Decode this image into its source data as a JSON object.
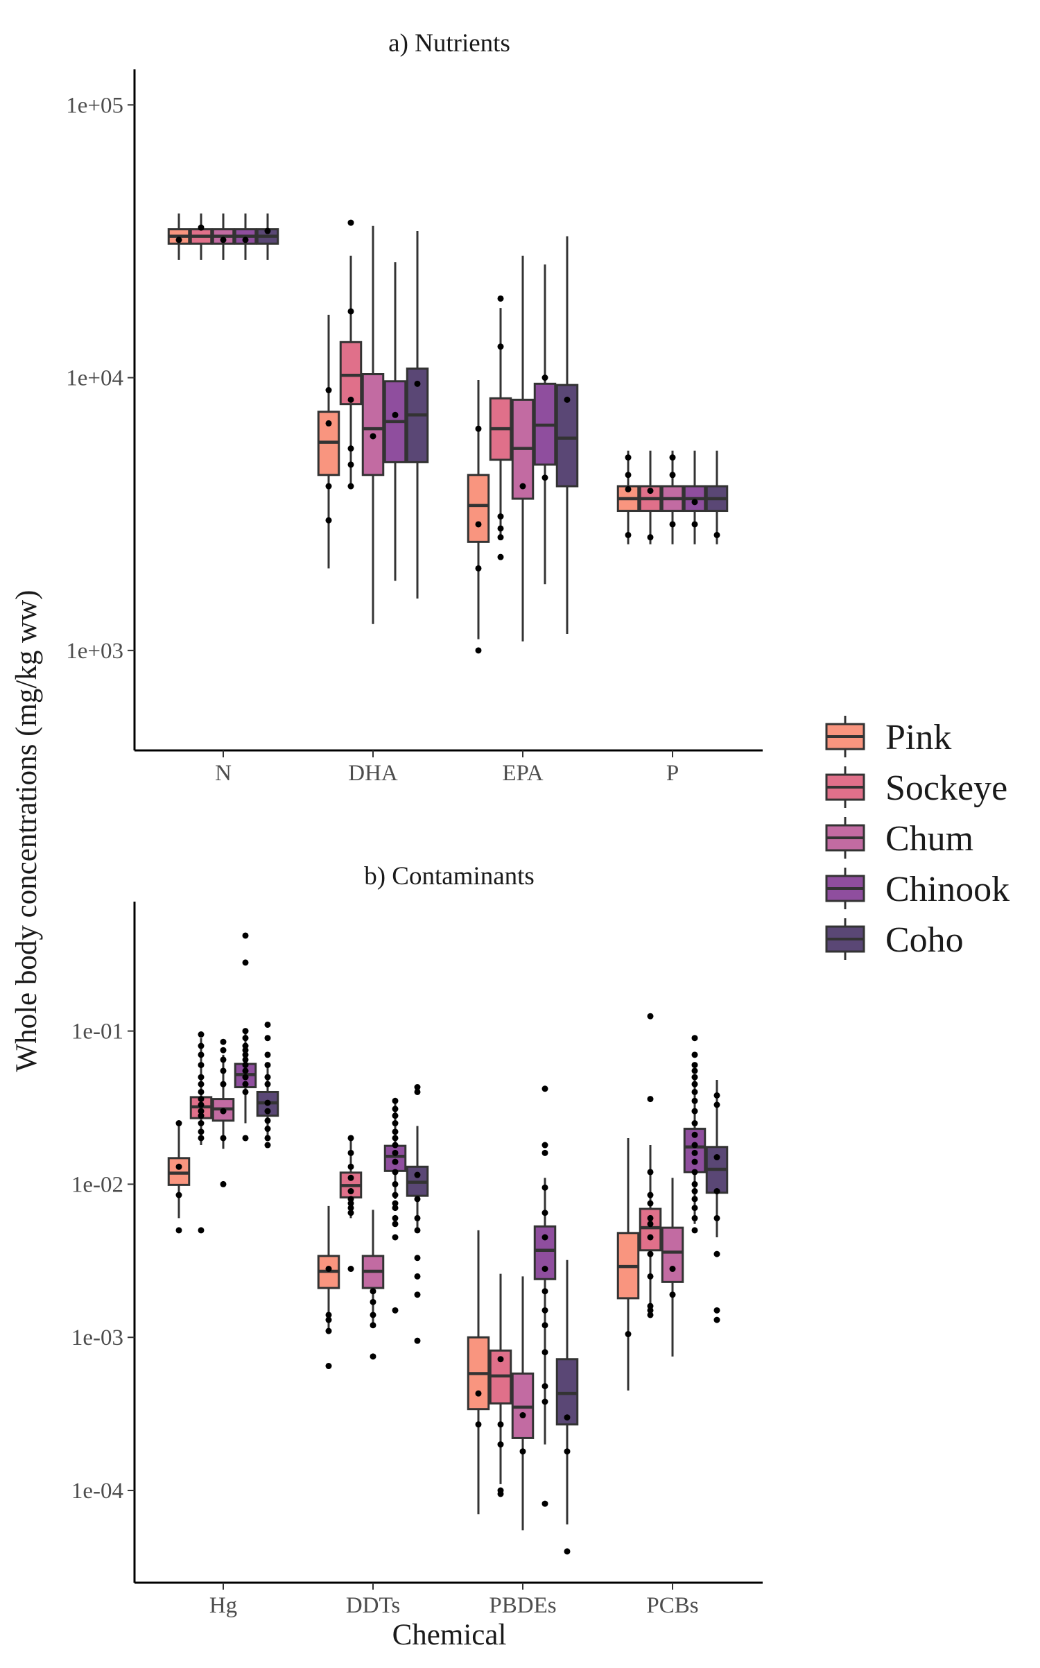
{
  "chart_data": {
    "type": "boxplot",
    "ylabel": "Whole body concentrations (mg/kg ww)",
    "xlabel": "Chemical",
    "yscale": "log10",
    "legend": {
      "position": "right",
      "entries": [
        "Pink",
        "Sockeye",
        "Chum",
        "Chinook",
        "Coho"
      ],
      "colors": [
        "#F9957F",
        "#E0708A",
        "#C26BA2",
        "#8F4E9E",
        "#5A4775"
      ]
    },
    "panels": [
      {
        "title": "a) Nutrients",
        "categories": [
          "N",
          "DHA",
          "EPA",
          "P"
        ],
        "yticks": [
          1000,
          10000,
          100000
        ],
        "ytick_labels": [
          "1e+03",
          "1e+04",
          "1e+05"
        ],
        "ylim": [
          430,
          135000
        ],
        "boxes": [
          {
            "category": "N",
            "series": "Pink",
            "wlo": 27000,
            "q1": 31000,
            "med": 33000,
            "q3": 35000,
            "whi": 40000,
            "points": [
              32000
            ]
          },
          {
            "category": "N",
            "series": "Sockeye",
            "wlo": 27000,
            "q1": 31000,
            "med": 33000,
            "q3": 35000,
            "whi": 40000,
            "points": [
              35500
            ]
          },
          {
            "category": "N",
            "series": "Chum",
            "wlo": 27000,
            "q1": 31000,
            "med": 33000,
            "q3": 35000,
            "whi": 40000,
            "points": [
              32000
            ]
          },
          {
            "category": "N",
            "series": "Chinook",
            "wlo": 27000,
            "q1": 31000,
            "med": 33000,
            "q3": 35000,
            "whi": 40000,
            "points": [
              32000
            ]
          },
          {
            "category": "N",
            "series": "Coho",
            "wlo": 27000,
            "q1": 31000,
            "med": 33000,
            "q3": 35000,
            "whi": 40000,
            "points": [
              34500
            ]
          },
          {
            "category": "DHA",
            "series": "Pink",
            "wlo": 2000,
            "q1": 4400,
            "med": 5800,
            "q3": 7500,
            "whi": 17000,
            "points": [
              3000,
              4000,
              6800,
              9000
            ]
          },
          {
            "category": "DHA",
            "series": "Sockeye",
            "wlo": 3900,
            "q1": 8000,
            "med": 10200,
            "q3": 13500,
            "whi": 28000,
            "points": [
              4000,
              4800,
              5500,
              8300,
              17500,
              37000
            ]
          },
          {
            "category": "DHA",
            "series": "Chum",
            "wlo": 1250,
            "q1": 4400,
            "med": 6500,
            "q3": 10300,
            "whi": 36000,
            "points": [
              6100
            ]
          },
          {
            "category": "DHA",
            "series": "Chinook",
            "wlo": 1800,
            "q1": 4900,
            "med": 6900,
            "q3": 9700,
            "whi": 26500,
            "points": [
              7300
            ]
          },
          {
            "category": "DHA",
            "series": "Coho",
            "wlo": 1550,
            "q1": 4900,
            "med": 7300,
            "q3": 10800,
            "whi": 34500,
            "points": [
              9500
            ]
          },
          {
            "category": "EPA",
            "series": "Pink",
            "wlo": 1100,
            "q1": 2500,
            "med": 3400,
            "q3": 4400,
            "whi": 9800,
            "points": [
              1000,
              2000,
              2900,
              6500
            ]
          },
          {
            "category": "EPA",
            "series": "Sockeye",
            "wlo": 2600,
            "q1": 5000,
            "med": 6500,
            "q3": 8400,
            "whi": 18000,
            "points": [
              2200,
              2600,
              2800,
              3100,
              13000,
              19500
            ]
          },
          {
            "category": "EPA",
            "series": "Chum",
            "wlo": 1080,
            "q1": 3600,
            "med": 5500,
            "q3": 8300,
            "whi": 28000,
            "points": [
              4000
            ]
          },
          {
            "category": "EPA",
            "series": "Chinook",
            "wlo": 1750,
            "q1": 4800,
            "med": 6700,
            "q3": 9500,
            "whi": 26000,
            "points": [
              4300,
              10000
            ]
          },
          {
            "category": "EPA",
            "series": "Coho",
            "wlo": 1150,
            "q1": 4000,
            "med": 6000,
            "q3": 9400,
            "whi": 33000,
            "points": [
              8300
            ]
          },
          {
            "category": "P",
            "series": "Pink",
            "wlo": 2450,
            "q1": 3250,
            "med": 3600,
            "q3": 4000,
            "whi": 5400,
            "points": [
              2650,
              3900,
              4400,
              5100
            ]
          },
          {
            "category": "P",
            "series": "Sockeye",
            "wlo": 2450,
            "q1": 3250,
            "med": 3600,
            "q3": 4000,
            "whi": 5400,
            "points": [
              2600,
              3850
            ]
          },
          {
            "category": "P",
            "series": "Chum",
            "wlo": 2450,
            "q1": 3250,
            "med": 3600,
            "q3": 4000,
            "whi": 5400,
            "points": [
              2900,
              4400,
              5100
            ]
          },
          {
            "category": "P",
            "series": "Chinook",
            "wlo": 2450,
            "q1": 3250,
            "med": 3600,
            "q3": 4000,
            "whi": 5400,
            "points": [
              2900,
              3500
            ]
          },
          {
            "category": "P",
            "series": "Coho",
            "wlo": 2450,
            "q1": 3250,
            "med": 3600,
            "q3": 4000,
            "whi": 5400,
            "points": [
              2650
            ]
          }
        ]
      },
      {
        "title": "b) Contaminants",
        "categories": [
          "Hg",
          "DDTs",
          "PBDEs",
          "PCBs"
        ],
        "yticks": [
          0.0001,
          0.001,
          0.01,
          0.1
        ],
        "ytick_labels": [
          "1e-04",
          "1e-03",
          "1e-02",
          "1e-01"
        ],
        "ylim": [
          2.5e-05,
          0.7
        ],
        "boxes": [
          {
            "category": "Hg",
            "series": "Pink",
            "wlo": 0.006,
            "q1": 0.0099,
            "med": 0.0118,
            "q3": 0.0148,
            "whi": 0.024,
            "points": [
              0.005,
              0.0085,
              0.013,
              0.025
            ]
          },
          {
            "category": "Hg",
            "series": "Sockeye",
            "wlo": 0.018,
            "q1": 0.027,
            "med": 0.032,
            "q3": 0.037,
            "whi": 0.09,
            "points": [
              0.005,
              0.02,
              0.022,
              0.025,
              0.028,
              0.03,
              0.033,
              0.036,
              0.04,
              0.045,
              0.05,
              0.06,
              0.07,
              0.08,
              0.095
            ]
          },
          {
            "category": "Hg",
            "series": "Chum",
            "wlo": 0.017,
            "q1": 0.026,
            "med": 0.031,
            "q3": 0.036,
            "whi": 0.07,
            "points": [
              0.01,
              0.02,
              0.03,
              0.045,
              0.055,
              0.065,
              0.075,
              0.085
            ]
          },
          {
            "category": "Hg",
            "series": "Chinook",
            "wlo": 0.025,
            "q1": 0.043,
            "med": 0.052,
            "q3": 0.061,
            "whi": 0.1,
            "points": [
              0.02,
              0.04,
              0.045,
              0.05,
              0.055,
              0.06,
              0.065,
              0.07,
              0.075,
              0.08,
              0.09,
              0.1,
              0.28,
              0.42
            ]
          },
          {
            "category": "Hg",
            "series": "Coho",
            "wlo": 0.02,
            "q1": 0.028,
            "med": 0.034,
            "q3": 0.04,
            "whi": 0.06,
            "points": [
              0.018,
              0.02,
              0.023,
              0.026,
              0.03,
              0.034,
              0.045,
              0.05,
              0.06,
              0.07,
              0.09,
              0.11
            ]
          },
          {
            "category": "DDTs",
            "series": "Pink",
            "wlo": 0.0011,
            "q1": 0.0021,
            "med": 0.0027,
            "q3": 0.0034,
            "whi": 0.0072,
            "points": [
              0.00065,
              0.0011,
              0.0013,
              0.0014,
              0.0028
            ]
          },
          {
            "category": "DDTs",
            "series": "Sockeye",
            "wlo": 0.006,
            "q1": 0.0082,
            "med": 0.0098,
            "q3": 0.0119,
            "whi": 0.02,
            "points": [
              0.0028,
              0.0065,
              0.007,
              0.0075,
              0.008,
              0.009,
              0.011,
              0.013,
              0.016,
              0.02
            ]
          },
          {
            "category": "DDTs",
            "series": "Chum",
            "wlo": 0.0012,
            "q1": 0.0021,
            "med": 0.0027,
            "q3": 0.0034,
            "whi": 0.0068,
            "points": [
              0.00075,
              0.0012,
              0.0014,
              0.0017,
              0.002
            ]
          },
          {
            "category": "DDTs",
            "series": "Chinook",
            "wlo": 0.008,
            "q1": 0.0122,
            "med": 0.0152,
            "q3": 0.0178,
            "whi": 0.034,
            "points": [
              0.0015,
              0.0045,
              0.0055,
              0.006,
              0.007,
              0.0075,
              0.0085,
              0.01,
              0.012,
              0.014,
              0.016,
              0.018,
              0.02,
              0.022,
              0.025,
              0.028,
              0.031,
              0.035
            ]
          },
          {
            "category": "DDTs",
            "series": "Coho",
            "wlo": 0.005,
            "q1": 0.0084,
            "med": 0.0103,
            "q3": 0.013,
            "whi": 0.024,
            "points": [
              0.00095,
              0.0019,
              0.0025,
              0.0033,
              0.005,
              0.006,
              0.008,
              0.0115,
              0.04,
              0.043
            ]
          },
          {
            "category": "PBDEs",
            "series": "Pink",
            "wlo": 7e-05,
            "q1": 0.00034,
            "med": 0.00058,
            "q3": 0.001,
            "whi": 0.005,
            "points": [
              0.00027,
              0.00043
            ]
          },
          {
            "category": "PBDEs",
            "series": "Sockeye",
            "wlo": 0.00011,
            "q1": 0.00037,
            "med": 0.00056,
            "q3": 0.00082,
            "whi": 0.0026,
            "points": [
              9.5e-05,
              0.0001,
              0.0002,
              0.00027,
              0.00072
            ]
          },
          {
            "category": "PBDEs",
            "series": "Chum",
            "wlo": 5.5e-05,
            "q1": 0.00022,
            "med": 0.00035,
            "q3": 0.00058,
            "whi": 0.0025,
            "points": [
              0.00018,
              0.00031
            ]
          },
          {
            "category": "PBDEs",
            "series": "Chinook",
            "wlo": 0.0002,
            "q1": 0.0024,
            "med": 0.0037,
            "q3": 0.0053,
            "whi": 0.011,
            "points": [
              8.2e-05,
              0.00038,
              0.00048,
              0.0008,
              0.0012,
              0.0015,
              0.002,
              0.0028,
              0.0045,
              0.0065,
              0.0095,
              0.016,
              0.018,
              0.042
            ]
          },
          {
            "category": "PBDEs",
            "series": "Coho",
            "wlo": 6e-05,
            "q1": 0.00027,
            "med": 0.00043,
            "q3": 0.00072,
            "whi": 0.0032,
            "points": [
              4e-05,
              0.00018,
              0.0003
            ]
          },
          {
            "category": "PCBs",
            "series": "Pink",
            "wlo": 0.00045,
            "q1": 0.0018,
            "med": 0.0029,
            "q3": 0.0048,
            "whi": 0.02,
            "points": [
              0.00105
            ]
          },
          {
            "category": "PCBs",
            "series": "Sockeye",
            "wlo": 0.0014,
            "q1": 0.0037,
            "med": 0.0052,
            "q3": 0.0069,
            "whi": 0.018,
            "points": [
              0.0014,
              0.0015,
              0.0016,
              0.0025,
              0.0035,
              0.0045,
              0.0055,
              0.006,
              0.0075,
              0.0085,
              0.012,
              0.036,
              0.125
            ]
          },
          {
            "category": "PCBs",
            "series": "Chum",
            "wlo": 0.00075,
            "q1": 0.0023,
            "med": 0.0036,
            "q3": 0.0052,
            "whi": 0.011,
            "points": [
              0.0019,
              0.0028
            ]
          },
          {
            "category": "PCBs",
            "series": "Chinook",
            "wlo": 0.0055,
            "q1": 0.012,
            "med": 0.0175,
            "q3": 0.023,
            "whi": 0.05,
            "points": [
              0.005,
              0.006,
              0.007,
              0.008,
              0.009,
              0.01,
              0.012,
              0.014,
              0.016,
              0.018,
              0.021,
              0.025,
              0.03,
              0.035,
              0.04,
              0.045,
              0.05,
              0.055,
              0.06,
              0.07,
              0.09
            ]
          },
          {
            "category": "PCBs",
            "series": "Coho",
            "wlo": 0.0045,
            "q1": 0.0088,
            "med": 0.0125,
            "q3": 0.0175,
            "whi": 0.048,
            "points": [
              0.0013,
              0.0015,
              0.0035,
              0.006,
              0.009,
              0.015,
              0.033,
              0.038
            ]
          }
        ]
      }
    ]
  }
}
